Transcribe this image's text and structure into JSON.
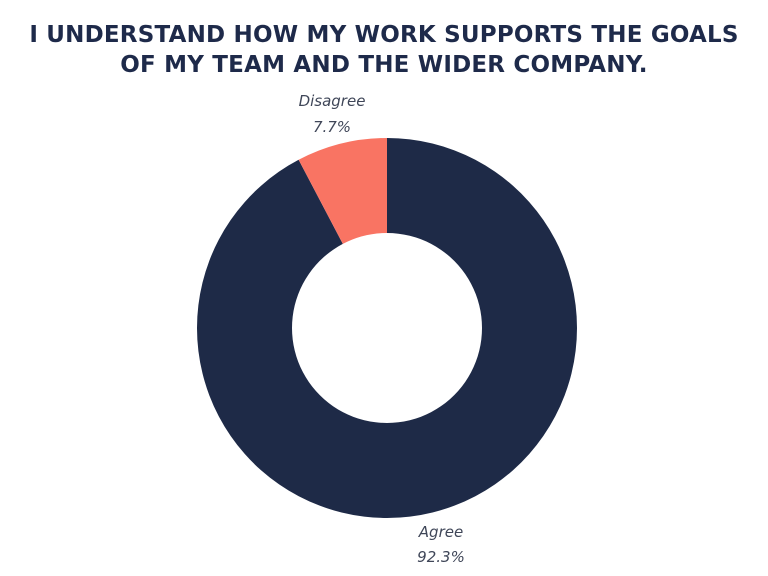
{
  "chart_data": {
    "type": "pie",
    "title_lines": [
      "I UNDERSTAND HOW MY WORK SUPPORTS THE GOALS",
      "OF MY TEAM AND THE WIDER COMPANY."
    ],
    "donut": true,
    "categories": [
      "Agree",
      "Disagree"
    ],
    "values": [
      92.3,
      7.7
    ],
    "value_labels": [
      "92.3%",
      "7.7%"
    ],
    "colors": [
      "#1e2a47",
      "#f97463"
    ],
    "legend": "none"
  }
}
